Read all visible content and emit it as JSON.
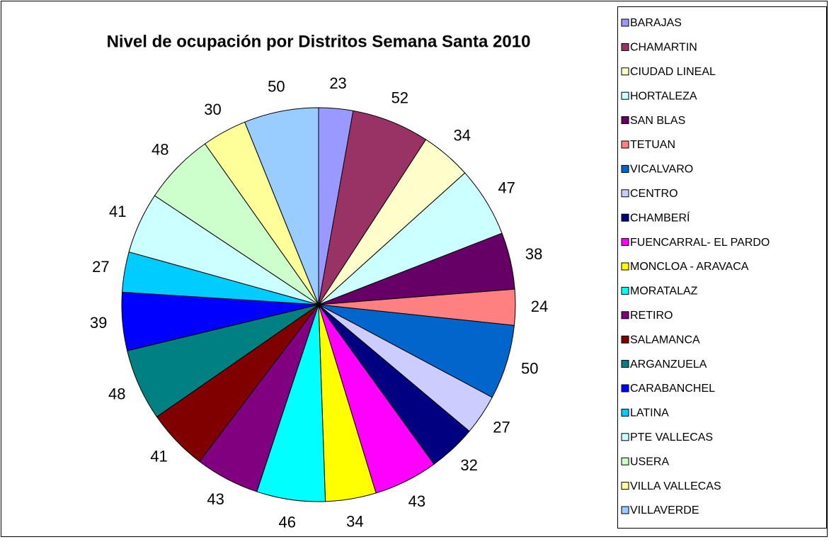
{
  "chart_data": {
    "type": "pie",
    "title": "Nivel de ocupación por Distritos Semana Santa 2010",
    "categories": [
      "BARAJAS",
      "CHAMARTIN",
      "CIUDAD LINEAL",
      "HORTALEZA",
      "SAN BLAS",
      "TETUAN",
      "VICALVARO",
      "CENTRO",
      "CHAMBERÍ",
      "FUENCARRAL- EL PARDO",
      "MONCLOA - ARAVACA",
      "MORATALAZ",
      "RETIRO",
      "SALAMANCA",
      "ARGANZUELA",
      "CARABANCHEL",
      "LATINA",
      "PTE VALLECAS",
      "USERA",
      "VILLA VALLECAS",
      "VILLAVERDE"
    ],
    "values": [
      23,
      52,
      34,
      47,
      38,
      24,
      50,
      27,
      32,
      43,
      34,
      46,
      43,
      41,
      48,
      39,
      27,
      41,
      48,
      30,
      50
    ],
    "colors": [
      "#9999ff",
      "#993366",
      "#ffffcc",
      "#ccffff",
      "#660066",
      "#ff8080",
      "#0066cc",
      "#ccccff",
      "#000080",
      "#ff00ff",
      "#ffff00",
      "#00ffff",
      "#800080",
      "#800000",
      "#008080",
      "#0000ff",
      "#00ccff",
      "#ccffff",
      "#ccffcc",
      "#ffff99",
      "#99ccff"
    ],
    "legend": "right"
  }
}
